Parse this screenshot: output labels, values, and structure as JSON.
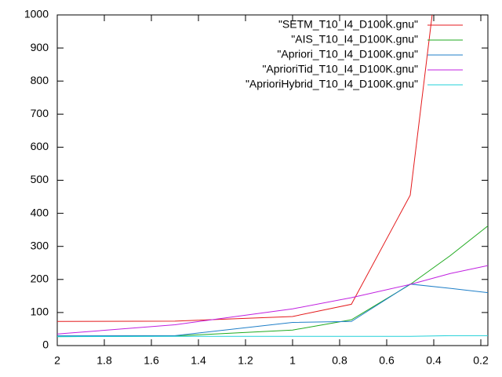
{
  "chart_data": {
    "type": "line",
    "x": [
      2,
      1.5,
      1,
      0.75,
      0.5,
      0.33,
      0.17
    ],
    "xlim": [
      2,
      0.17
    ],
    "xticks": [
      2,
      1.8,
      1.6,
      1.4,
      1.2,
      1,
      0.8,
      0.6,
      0.4,
      0.2
    ],
    "ylim": [
      0,
      1000
    ],
    "yticks": [
      0,
      100,
      200,
      300,
      400,
      500,
      600,
      700,
      800,
      900,
      1000
    ],
    "legend": "top-right",
    "series": [
      {
        "name": "\"SETM_T10_I4_D100K.gnu\"",
        "color": "#e41a1c",
        "values": [
          73,
          74,
          88,
          125,
          455,
          1450,
          null
        ]
      },
      {
        "name": "\"AIS_T10_I4_D100K.gnu\"",
        "color": "#1faa1f",
        "values": [
          27,
          29,
          47,
          78,
          185,
          272,
          362
        ]
      },
      {
        "name": "\"Apriori_T10_I4_D100K.gnu\"",
        "color": "#1f7fc8",
        "values": [
          30,
          30,
          70,
          73,
          186,
          173,
          160
        ]
      },
      {
        "name": "\"AprioriTid_T10_I4_D100K.gnu\"",
        "color": "#c020e0",
        "values": [
          35,
          63,
          111,
          145,
          185,
          218,
          242
        ]
      },
      {
        "name": "\"AprioriHybrid_T10_I4_D100K.gnu\"",
        "color": "#20d0d8",
        "values": [
          27,
          28,
          28,
          28,
          28,
          30,
          30
        ]
      }
    ]
  }
}
